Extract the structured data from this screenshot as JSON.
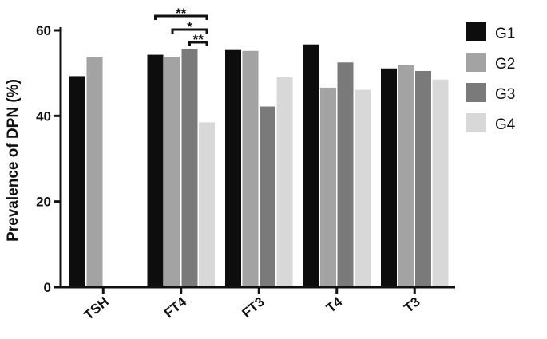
{
  "chart_data": {
    "type": "bar",
    "ylabel": "Prevalence of DPN (%)",
    "ylim": [
      0,
      60
    ],
    "yticks": [
      0,
      20,
      40,
      60
    ],
    "categories": [
      "TSH",
      "FT4",
      "FT3",
      "T4",
      "T3"
    ],
    "series": [
      {
        "name": "G1",
        "color": "#0d0d0d",
        "values": [
          49.3,
          54.3,
          55.4,
          56.7,
          51.1
        ]
      },
      {
        "name": "G2",
        "color": "#a3a3a3",
        "values": [
          53.8,
          53.8,
          55.2,
          46.6,
          51.8
        ]
      },
      {
        "name": "G3",
        "color": "#7a7a7a",
        "values": [
          null,
          55.6,
          42.2,
          52.5,
          50.5
        ]
      },
      {
        "name": "G4",
        "color": "#d8d8d8",
        "values": [
          null,
          38.5,
          49.1,
          46.1,
          48.5
        ]
      }
    ],
    "legend_position": "top-right",
    "significance": [
      {
        "category": "FT4",
        "from": "G1",
        "to": "G4",
        "label": "**"
      },
      {
        "category": "FT4",
        "from": "G2",
        "to": "G4",
        "label": "*"
      },
      {
        "category": "FT4",
        "from": "G3",
        "to": "G4",
        "label": "**"
      }
    ]
  }
}
